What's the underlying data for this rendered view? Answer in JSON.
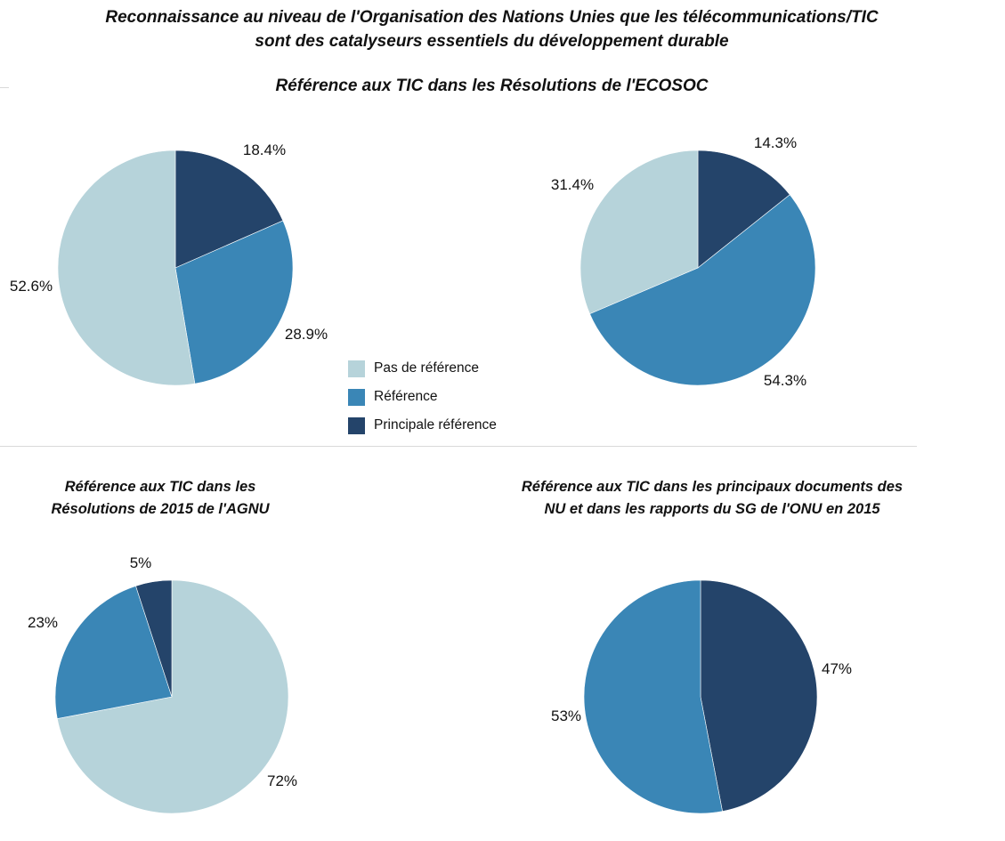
{
  "header": {
    "title_line1": "Reconnaissance au niveau de l'Organisation des Nations Unies que les télécommunications/TIC",
    "title_line2": "sont des catalyseurs essentiels du développement durable",
    "subtitle": "Référence aux TIC dans les Résolutions de l'ECOSOC"
  },
  "legend": {
    "items": [
      {
        "label": "Pas de référence",
        "color": "#b6d3da"
      },
      {
        "label": "Référence",
        "color": "#3a86b6"
      },
      {
        "label": "Principale référence",
        "color": "#24446a"
      }
    ]
  },
  "chart_data": [
    {
      "type": "pie",
      "title": "",
      "slices": [
        {
          "category": "Principale référence",
          "value": 18.4,
          "label": "18.4%"
        },
        {
          "category": "Référence",
          "value": 28.9,
          "label": "28.9%"
        },
        {
          "category": "Pas de référence",
          "value": 52.6,
          "label": "52.6%"
        }
      ]
    },
    {
      "type": "pie",
      "title": "",
      "slices": [
        {
          "category": "Principale référence",
          "value": 14.3,
          "label": "14.3%"
        },
        {
          "category": "Référence",
          "value": 54.3,
          "label": "54.3%"
        },
        {
          "category": "Pas de référence",
          "value": 31.4,
          "label": "31.4%"
        }
      ]
    },
    {
      "type": "pie",
      "title_line1": "Référence aux TIC dans les",
      "title_line2": "Résolutions de 2015 de l'AGNU",
      "slices": [
        {
          "category": "Pas de référence",
          "value": 72,
          "label": "72%"
        },
        {
          "category": "Référence",
          "value": 23,
          "label": "23%"
        },
        {
          "category": "Principale référence",
          "value": 5,
          "label": "5%"
        }
      ]
    },
    {
      "type": "pie",
      "title_line1": "Référence aux TIC dans les principaux documents des",
      "title_line2": "NU et dans les rapports du SG de l'ONU en 2015",
      "slices": [
        {
          "category": "Principale référence",
          "value": 47,
          "label": "47%"
        },
        {
          "category": "Référence",
          "value": 53,
          "label": "53%"
        }
      ]
    }
  ]
}
